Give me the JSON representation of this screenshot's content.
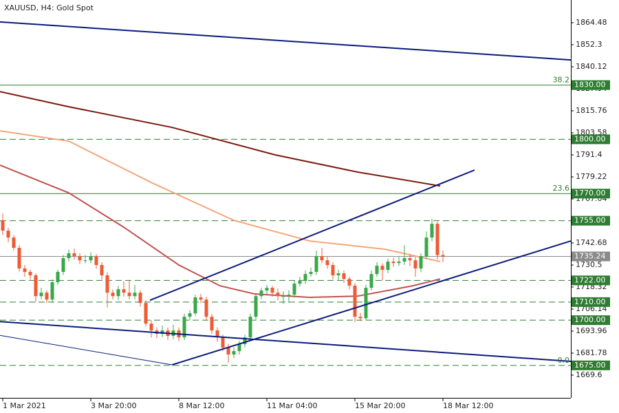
{
  "chart_data": {
    "type": "candlestick",
    "title": "XAUUSD, H4:  Gold Spot",
    "up_color": "#3aa84a",
    "down_color": "#ee5b35",
    "xlim": [
      -0.5,
      103.25
    ],
    "ylim": [
      1657.04,
      1877.04
    ],
    "xticks": [
      {
        "value": 0,
        "label": "1 Mar 2021"
      },
      {
        "value": 16,
        "label": "3 Mar 20:00"
      },
      {
        "value": 32,
        "label": "8 Mar 12:00"
      },
      {
        "value": 48,
        "label": "11 Mar 04:00"
      },
      {
        "value": 64,
        "label": "15 Mar 20:00"
      },
      {
        "value": 80,
        "label": "18 Mar 12:00"
      }
    ],
    "yticks": [
      1864.48,
      1852.3,
      1840.12,
      1827.94,
      1815.76,
      1803.58,
      1791.4,
      1779.22,
      1767.04,
      1742.68,
      1730.5,
      1718.32,
      1706.14,
      1693.96,
      1681.78,
      1669.6
    ],
    "ohlc": [
      [
        1755.0,
        1759.0,
        1747.0,
        1749.5
      ],
      [
        1749.5,
        1751.0,
        1743.0,
        1745.7
      ],
      [
        1745.7,
        1747.0,
        1738.5,
        1740.0
      ],
      [
        1740.0,
        1741.5,
        1727.0,
        1728.6
      ],
      [
        1728.6,
        1730.5,
        1724.0,
        1726.7
      ],
      [
        1726.7,
        1728.0,
        1722.5,
        1724.8
      ],
      [
        1724.8,
        1726.0,
        1710.0,
        1713.3
      ],
      [
        1713.3,
        1718.0,
        1711.5,
        1715.2
      ],
      [
        1715.2,
        1716.5,
        1709.5,
        1711.4
      ],
      [
        1711.4,
        1722.5,
        1710.0,
        1721.0
      ],
      [
        1721.0,
        1728.0,
        1719.5,
        1726.7
      ],
      [
        1726.7,
        1736.0,
        1725.0,
        1734.3
      ],
      [
        1734.3,
        1739.0,
        1732.5,
        1737.0
      ],
      [
        1737.0,
        1739.5,
        1733.5,
        1735.4
      ],
      [
        1735.4,
        1737.0,
        1731.0,
        1733.1
      ],
      [
        1733.1,
        1736.0,
        1731.5,
        1733.1
      ],
      [
        1733.1,
        1737.5,
        1731.5,
        1735.4
      ],
      [
        1735.4,
        1736.5,
        1728.5,
        1730.5
      ],
      [
        1730.5,
        1732.0,
        1722.5,
        1724.8
      ],
      [
        1724.8,
        1726.5,
        1707.0,
        1715.2
      ],
      [
        1715.2,
        1717.0,
        1711.5,
        1713.3
      ],
      [
        1713.3,
        1719.0,
        1711.0,
        1717.1
      ],
      [
        1717.1,
        1721.5,
        1713.0,
        1715.2
      ],
      [
        1715.2,
        1722.0,
        1711.5,
        1713.3
      ],
      [
        1713.3,
        1719.5,
        1711.5,
        1715.2
      ],
      [
        1715.2,
        1716.5,
        1707.5,
        1709.5
      ],
      [
        1709.5,
        1711.0,
        1696.5,
        1698.1
      ],
      [
        1698.1,
        1700.0,
        1690.5,
        1694.3
      ],
      [
        1694.3,
        1696.0,
        1690.0,
        1692.4
      ],
      [
        1692.4,
        1697.0,
        1690.5,
        1694.3
      ],
      [
        1694.3,
        1696.0,
        1689.0,
        1691.3
      ],
      [
        1691.3,
        1697.5,
        1689.5,
        1694.3
      ],
      [
        1694.3,
        1696.0,
        1688.5,
        1690.5
      ],
      [
        1690.5,
        1703.5,
        1689.0,
        1701.9
      ],
      [
        1701.9,
        1705.5,
        1700.0,
        1703.8
      ],
      [
        1703.8,
        1714.0,
        1702.5,
        1712.6
      ],
      [
        1712.6,
        1714.5,
        1709.5,
        1711.4
      ],
      [
        1711.4,
        1713.0,
        1700.0,
        1701.9
      ],
      [
        1701.9,
        1703.5,
        1692.5,
        1694.3
      ],
      [
        1694.3,
        1696.0,
        1688.0,
        1690.5
      ],
      [
        1690.5,
        1692.0,
        1683.0,
        1684.8
      ],
      [
        1684.8,
        1687.0,
        1676.5,
        1681.0
      ],
      [
        1681.0,
        1685.0,
        1679.0,
        1682.9
      ],
      [
        1682.9,
        1688.5,
        1681.0,
        1686.7
      ],
      [
        1686.7,
        1692.0,
        1685.0,
        1690.5
      ],
      [
        1690.5,
        1703.5,
        1689.0,
        1701.9
      ],
      [
        1701.9,
        1715.0,
        1700.5,
        1713.3
      ],
      [
        1713.3,
        1718.0,
        1711.5,
        1716.4
      ],
      [
        1716.4,
        1719.5,
        1714.5,
        1717.9
      ],
      [
        1717.9,
        1719.0,
        1713.0,
        1715.2
      ],
      [
        1715.2,
        1717.5,
        1711.0,
        1713.3
      ],
      [
        1713.3,
        1716.0,
        1709.0,
        1713.3
      ],
      [
        1713.3,
        1716.5,
        1709.5,
        1714.1
      ],
      [
        1714.1,
        1722.0,
        1712.5,
        1720.2
      ],
      [
        1720.2,
        1724.0,
        1718.5,
        1721.7
      ],
      [
        1721.7,
        1727.5,
        1720.0,
        1725.5
      ],
      [
        1725.5,
        1729.0,
        1724.0,
        1726.7
      ],
      [
        1726.7,
        1738.5,
        1725.0,
        1735.4
      ],
      [
        1735.4,
        1740.0,
        1731.5,
        1733.1
      ],
      [
        1733.1,
        1735.0,
        1728.5,
        1730.5
      ],
      [
        1730.5,
        1732.0,
        1722.5,
        1724.8
      ],
      [
        1724.8,
        1728.0,
        1722.0,
        1725.9
      ],
      [
        1725.9,
        1727.5,
        1720.5,
        1722.8
      ],
      [
        1722.8,
        1724.0,
        1717.0,
        1719.1
      ],
      [
        1719.1,
        1720.5,
        1699.0,
        1701.9
      ],
      [
        1701.9,
        1704.0,
        1699.5,
        1701.1
      ],
      [
        1701.1,
        1719.5,
        1700.0,
        1717.9
      ],
      [
        1717.9,
        1727.5,
        1716.5,
        1725.5
      ],
      [
        1725.5,
        1732.0,
        1724.0,
        1730.1
      ],
      [
        1730.1,
        1731.5,
        1722.0,
        1727.8
      ],
      [
        1727.8,
        1734.0,
        1726.0,
        1732.4
      ],
      [
        1732.4,
        1734.5,
        1729.5,
        1731.6
      ],
      [
        1731.6,
        1735.0,
        1730.0,
        1732.4
      ],
      [
        1732.4,
        1741.5,
        1730.5,
        1734.3
      ],
      [
        1734.3,
        1736.5,
        1730.0,
        1733.1
      ],
      [
        1733.1,
        1735.0,
        1724.0,
        1728.6
      ],
      [
        1728.6,
        1737.0,
        1726.5,
        1735.4
      ],
      [
        1735.4,
        1749.0,
        1734.0,
        1745.7
      ],
      [
        1745.7,
        1756.0,
        1743.5,
        1753.3
      ],
      [
        1753.3,
        1754.5,
        1733.5,
        1736.0
      ],
      [
        1736.0,
        1738.5,
        1732.0,
        1735.2
      ]
    ],
    "moving_averages": [
      {
        "color": "#7b1a10",
        "x": [
          -0.5,
          12,
          30.75,
          49.5,
          64.5,
          79.5
        ],
        "y": [
          1826.4,
          1818.0,
          1806.6,
          1791.4,
          1781.9,
          1774.2
        ]
      },
      {
        "color": "#f4a57a",
        "x": [
          -0.5,
          12,
          27,
          42,
          55.75,
          69.5,
          79.5
        ],
        "y": [
          1804.7,
          1799.0,
          1776.1,
          1755.2,
          1743.8,
          1739.2,
          1732.4
        ]
      },
      {
        "color": "#c0504d",
        "x": [
          -0.5,
          12,
          22,
          32,
          39.5,
          45.75,
          55.75,
          64.5,
          74.5,
          79.5
        ],
        "y": [
          1785.7,
          1770.4,
          1751.4,
          1730.5,
          1719.0,
          1714.5,
          1712.6,
          1713.3,
          1719.0,
          1722.8
        ]
      }
    ],
    "trendlines": [
      {
        "color": "#0a1a7a",
        "width": 2,
        "x": [
          -0.5,
          103.25
        ],
        "y": [
          1864.9,
          1843.9
        ]
      },
      {
        "color": "#0a1a7a",
        "width": 2,
        "x": [
          -0.5,
          103.25
        ],
        "y": [
          1699.2,
          1677.2
        ]
      },
      {
        "color": "#0a1a7a",
        "width": 1,
        "x": [
          -0.5,
          30.75
        ],
        "y": [
          1691.6,
          1675.3
        ]
      },
      {
        "color": "#0a1a7a",
        "width": 2,
        "x": [
          26.75,
          85.75
        ],
        "y": [
          1711.0,
          1783.0
        ]
      },
      {
        "color": "#0a1a7a",
        "width": 2,
        "x": [
          30.75,
          103.25
        ],
        "y": [
          1675.3,
          1743.8
        ]
      }
    ],
    "level_color": "#2e7d32",
    "levels": [
      {
        "value": 1830,
        "label": "1830.00",
        "style": "solid",
        "fib": "38.2"
      },
      {
        "value": 1800,
        "label": "1800.00",
        "style": "dashed"
      },
      {
        "value": 1770,
        "label": "1770.00",
        "style": "solid",
        "fib": "23.6"
      },
      {
        "value": 1755,
        "label": "1755.00",
        "style": "dashed"
      },
      {
        "value": 1722,
        "label": "1722.00",
        "style": "dashed"
      },
      {
        "value": 1710,
        "label": "1710.00",
        "style": "dashed"
      },
      {
        "value": 1700,
        "label": "1700.00",
        "style": "dashed"
      },
      {
        "value": 1675,
        "label": "1675.00",
        "style": "dashed",
        "fib": "0.0"
      }
    ],
    "current_price": 1735.24,
    "current_color": "#8a8a8a"
  }
}
